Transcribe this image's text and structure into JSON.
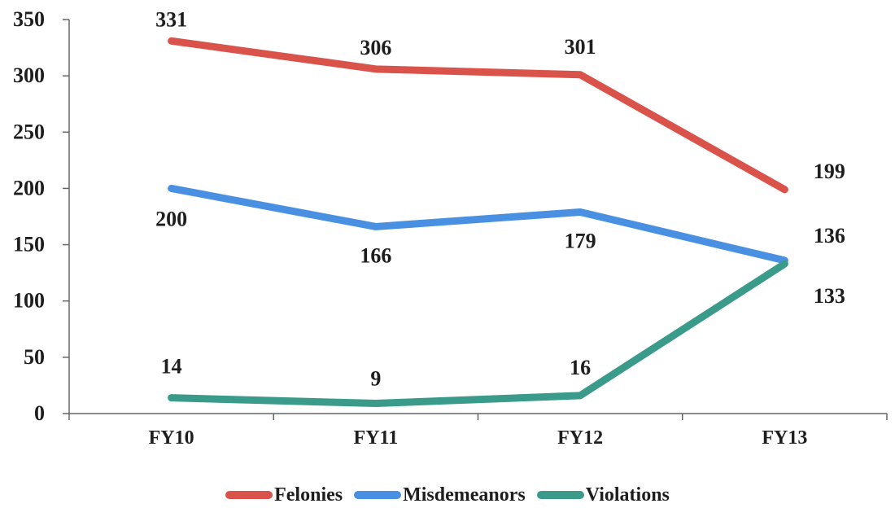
{
  "chart_data": {
    "type": "line",
    "title": "",
    "xlabel": "",
    "ylabel": "",
    "categories": [
      "FY10",
      "FY11",
      "FY12",
      "FY13"
    ],
    "ylim": [
      0,
      350
    ],
    "yticks": [
      "0",
      "50",
      "100",
      "150",
      "200",
      "250",
      "300",
      "350"
    ],
    "grid": false,
    "legend_position": "bottom",
    "series": [
      {
        "name": "Felonies",
        "color": "#d9534b",
        "values": [
          331,
          306,
          301,
          199
        ],
        "labels": [
          "331",
          "306",
          "301",
          "199"
        ]
      },
      {
        "name": "Misdemeanors",
        "color": "#4a90e2",
        "values": [
          200,
          166,
          179,
          136
        ],
        "labels": [
          "200",
          "166",
          "179",
          "136"
        ]
      },
      {
        "name": "Violations",
        "color": "#3b9b8a",
        "values": [
          14,
          9,
          16,
          133
        ],
        "labels": [
          "14",
          "9",
          "16",
          "133"
        ]
      }
    ]
  }
}
